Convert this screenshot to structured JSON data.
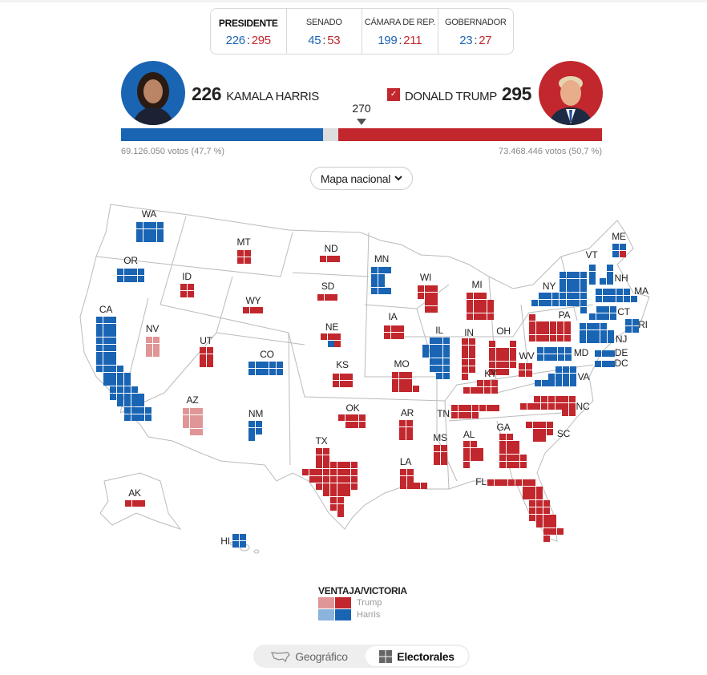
{
  "tabs": [
    {
      "label": "PRESIDENTE",
      "dem": "226",
      "rep": "295",
      "active": true
    },
    {
      "label": "SENADO",
      "dem": "45",
      "rep": "53"
    },
    {
      "label": "CÁMARA DE REP.",
      "dem": "199",
      "rep": "211"
    },
    {
      "label": "GOBERNADOR",
      "dem": "23",
      "rep": "27"
    }
  ],
  "harris": {
    "name": "KAMALA HARRIS",
    "electoral": "226",
    "votes": "69.126.050 votos (47,7 %)",
    "share": 226
  },
  "trump": {
    "name": "DONALD TRUMP",
    "electoral": "295",
    "votes": "73.468.446 votos (50,7 %)",
    "share": 295,
    "winner_check": "✓"
  },
  "threshold": "270",
  "total_electoral": 538,
  "map_selector": {
    "label": "Mapa nacional",
    "icon": "chevron-down-icon"
  },
  "colors": {
    "rep": "#c1272d",
    "rep_lead": "#e09696",
    "dem": "#1a64b4",
    "dem_lead": "#8ab4dc"
  },
  "map": {
    "states": [
      {
        "abbr": "WA",
        "status": "win",
        "votes": [
          {
            "p": "D",
            "n": 12
          }
        ]
      },
      {
        "abbr": "OR",
        "status": "win",
        "votes": [
          {
            "p": "D",
            "n": 8
          }
        ]
      },
      {
        "abbr": "CA",
        "status": "win",
        "votes": [
          {
            "p": "D",
            "n": 54
          }
        ]
      },
      {
        "abbr": "NV",
        "status": "lead",
        "votes": [
          {
            "p": "R",
            "n": 6
          }
        ]
      },
      {
        "abbr": "ID",
        "status": "win",
        "votes": [
          {
            "p": "R",
            "n": 4
          }
        ]
      },
      {
        "abbr": "MT",
        "status": "win",
        "votes": [
          {
            "p": "R",
            "n": 4
          }
        ]
      },
      {
        "abbr": "WY",
        "status": "win",
        "votes": [
          {
            "p": "R",
            "n": 3
          }
        ]
      },
      {
        "abbr": "UT",
        "status": "win",
        "votes": [
          {
            "p": "R",
            "n": 6
          }
        ]
      },
      {
        "abbr": "CO",
        "status": "win",
        "votes": [
          {
            "p": "D",
            "n": 10
          }
        ]
      },
      {
        "abbr": "AZ",
        "status": "lead",
        "votes": [
          {
            "p": "R",
            "n": 11
          }
        ]
      },
      {
        "abbr": "NM",
        "status": "win",
        "votes": [
          {
            "p": "D",
            "n": 5
          }
        ]
      },
      {
        "abbr": "ND",
        "status": "win",
        "votes": [
          {
            "p": "R",
            "n": 3
          }
        ]
      },
      {
        "abbr": "SD",
        "status": "win",
        "votes": [
          {
            "p": "R",
            "n": 3
          }
        ]
      },
      {
        "abbr": "NE",
        "status": "win",
        "votes": [
          {
            "p": "R",
            "n": 3
          },
          {
            "p": "D",
            "n": 1
          },
          {
            "p": "R",
            "n": 1
          }
        ]
      },
      {
        "abbr": "KS",
        "status": "win",
        "votes": [
          {
            "p": "R",
            "n": 6
          }
        ]
      },
      {
        "abbr": "OK",
        "status": "win",
        "votes": [
          {
            "p": "R",
            "n": 7
          }
        ]
      },
      {
        "abbr": "TX",
        "status": "win",
        "votes": [
          {
            "p": "R",
            "n": 40
          }
        ]
      },
      {
        "abbr": "MN",
        "status": "win",
        "votes": [
          {
            "p": "D",
            "n": 10
          }
        ]
      },
      {
        "abbr": "IA",
        "status": "win",
        "votes": [
          {
            "p": "R",
            "n": 6
          }
        ]
      },
      {
        "abbr": "MO",
        "status": "win",
        "votes": [
          {
            "p": "R",
            "n": 10
          }
        ]
      },
      {
        "abbr": "AR",
        "status": "win",
        "votes": [
          {
            "p": "R",
            "n": 6
          }
        ]
      },
      {
        "abbr": "LA",
        "status": "win",
        "votes": [
          {
            "p": "R",
            "n": 8
          }
        ]
      },
      {
        "abbr": "WI",
        "status": "win",
        "votes": [
          {
            "p": "R",
            "n": 10
          }
        ]
      },
      {
        "abbr": "IL",
        "status": "win",
        "votes": [
          {
            "p": "D",
            "n": 19
          }
        ]
      },
      {
        "abbr": "MI",
        "status": "win",
        "votes": [
          {
            "p": "R",
            "n": 15
          }
        ]
      },
      {
        "abbr": "IN",
        "status": "win",
        "votes": [
          {
            "p": "R",
            "n": 11
          }
        ]
      },
      {
        "abbr": "OH",
        "status": "win",
        "votes": [
          {
            "p": "R",
            "n": 17
          }
        ]
      },
      {
        "abbr": "KY",
        "status": "win",
        "votes": [
          {
            "p": "R",
            "n": 8
          }
        ]
      },
      {
        "abbr": "TN",
        "status": "win",
        "votes": [
          {
            "p": "R",
            "n": 11
          }
        ]
      },
      {
        "abbr": "MS",
        "status": "win",
        "votes": [
          {
            "p": "R",
            "n": 6
          }
        ]
      },
      {
        "abbr": "AL",
        "status": "win",
        "votes": [
          {
            "p": "R",
            "n": 9
          }
        ]
      },
      {
        "abbr": "GA",
        "status": "win",
        "votes": [
          {
            "p": "R",
            "n": 16
          }
        ]
      },
      {
        "abbr": "FL",
        "status": "win",
        "votes": [
          {
            "p": "R",
            "n": 30
          }
        ]
      },
      {
        "abbr": "SC",
        "status": "win",
        "votes": [
          {
            "p": "R",
            "n": 9
          }
        ]
      },
      {
        "abbr": "NC",
        "status": "win",
        "votes": [
          {
            "p": "R",
            "n": 16
          }
        ]
      },
      {
        "abbr": "VA",
        "status": "win",
        "votes": [
          {
            "p": "D",
            "n": 13
          }
        ]
      },
      {
        "abbr": "WV",
        "status": "win",
        "votes": [
          {
            "p": "R",
            "n": 4
          }
        ]
      },
      {
        "abbr": "PA",
        "status": "win",
        "votes": [
          {
            "p": "R",
            "n": 19
          }
        ]
      },
      {
        "abbr": "NY",
        "status": "win",
        "votes": [
          {
            "p": "D",
            "n": 28
          }
        ]
      },
      {
        "abbr": "VT",
        "status": "win",
        "votes": [
          {
            "p": "D",
            "n": 3
          }
        ]
      },
      {
        "abbr": "NH",
        "status": "win",
        "votes": [
          {
            "p": "D",
            "n": 4
          }
        ]
      },
      {
        "abbr": "ME",
        "status": "win",
        "votes": [
          {
            "p": "D",
            "n": 3
          },
          {
            "p": "R",
            "n": 1
          }
        ]
      },
      {
        "abbr": "MA",
        "status": "win",
        "votes": [
          {
            "p": "D",
            "n": 11
          }
        ]
      },
      {
        "abbr": "CT",
        "status": "win",
        "votes": [
          {
            "p": "D",
            "n": 7
          }
        ]
      },
      {
        "abbr": "RI",
        "status": "win",
        "votes": [
          {
            "p": "D",
            "n": 4
          }
        ]
      },
      {
        "abbr": "NJ",
        "status": "win",
        "votes": [
          {
            "p": "D",
            "n": 14
          }
        ]
      },
      {
        "abbr": "MD",
        "status": "win",
        "votes": [
          {
            "p": "D",
            "n": 10
          }
        ]
      },
      {
        "abbr": "DE",
        "status": "win",
        "votes": [
          {
            "p": "D",
            "n": 3
          }
        ]
      },
      {
        "abbr": "DC",
        "status": "win",
        "votes": [
          {
            "p": "D",
            "n": 3
          }
        ]
      },
      {
        "abbr": "AK",
        "status": "win",
        "votes": [
          {
            "p": "R",
            "n": 3
          }
        ]
      },
      {
        "abbr": "HI",
        "status": "win",
        "votes": [
          {
            "p": "D",
            "n": 4
          }
        ]
      }
    ]
  },
  "legend": {
    "title": "VENTAJA/VICTORIA",
    "trump": "Trump",
    "harris": "Harris"
  },
  "view_toggle": {
    "geo": "Geográfico",
    "electoral": "Electorales",
    "active": "electoral"
  }
}
